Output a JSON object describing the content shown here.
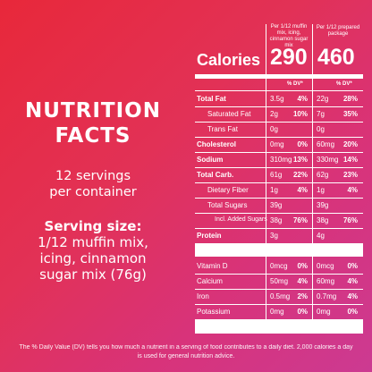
{
  "left": {
    "title_line1": "NUTRITION",
    "title_line2": "FACTS",
    "servings_line1": "12 servings",
    "servings_line2": "per container",
    "serving_size_label": "Serving size:",
    "serving_size_line1": "1/12 muffin mix,",
    "serving_size_line2": "icing, cinnamon",
    "serving_size_line3": "sugar mix (76g)"
  },
  "table": {
    "col1_header": "Per 1/12 muffin mix, icing, cinnamon sugar mix",
    "col2_header": "Per 1/12 prepared package",
    "calories_label": "Calories",
    "calories_col1": "290",
    "calories_col2": "460",
    "dv_header": "% DV*",
    "rows": [
      {
        "name": "Total Fat",
        "bold": true,
        "a1": "3.5g",
        "p1": "4%",
        "a2": "22g",
        "p2": "28%"
      },
      {
        "name": "Saturated Fat",
        "bold": false,
        "a1": "2g",
        "p1": "10%",
        "a2": "7g",
        "p2": "35%"
      },
      {
        "name": "Trans Fat",
        "bold": false,
        "a1": "0g",
        "p1": "",
        "a2": "0g",
        "p2": ""
      },
      {
        "name": "Cholesterol",
        "bold": true,
        "a1": "0mg",
        "p1": "0%",
        "a2": "60mg",
        "p2": "20%"
      },
      {
        "name": "Sodium",
        "bold": true,
        "a1": "310mg",
        "p1": "13%",
        "a2": "330mg",
        "p2": "14%"
      },
      {
        "name": "Total Carb.",
        "bold": true,
        "a1": "61g",
        "p1": "22%",
        "a2": "62g",
        "p2": "23%"
      },
      {
        "name": "Dietary Fiber",
        "bold": false,
        "a1": "1g",
        "p1": "4%",
        "a2": "1g",
        "p2": "4%"
      },
      {
        "name": "Total Sugars",
        "bold": false,
        "a1": "39g",
        "p1": "",
        "a2": "39g",
        "p2": ""
      },
      {
        "name": "Incl. Added Sugars",
        "bold": false,
        "a1": "38g",
        "p1": "76%",
        "a2": "38g",
        "p2": "76%"
      },
      {
        "name": "Protein",
        "bold": true,
        "a1": "3g",
        "p1": "",
        "a2": "4g",
        "p2": ""
      },
      {
        "name": "Vitamin D",
        "bold": false,
        "a1": "0mcg",
        "p1": "0%",
        "a2": "0mcg",
        "p2": "0%"
      },
      {
        "name": "Calcium",
        "bold": false,
        "a1": "50mg",
        "p1": "4%",
        "a2": "60mg",
        "p2": "4%"
      },
      {
        "name": "Iron",
        "bold": false,
        "a1": "0.5mg",
        "p1": "2%",
        "a2": "0.7mg",
        "p2": "4%"
      },
      {
        "name": "Potassium",
        "bold": false,
        "a1": "0mg",
        "p1": "0%",
        "a2": "0mg",
        "p2": "0%"
      }
    ]
  },
  "footnote": "The % Daily Value (DV) tells you how much a nutrient in a serving of food contributes to a daily diet. 2,000 calories a day is used for general nutrition advice."
}
